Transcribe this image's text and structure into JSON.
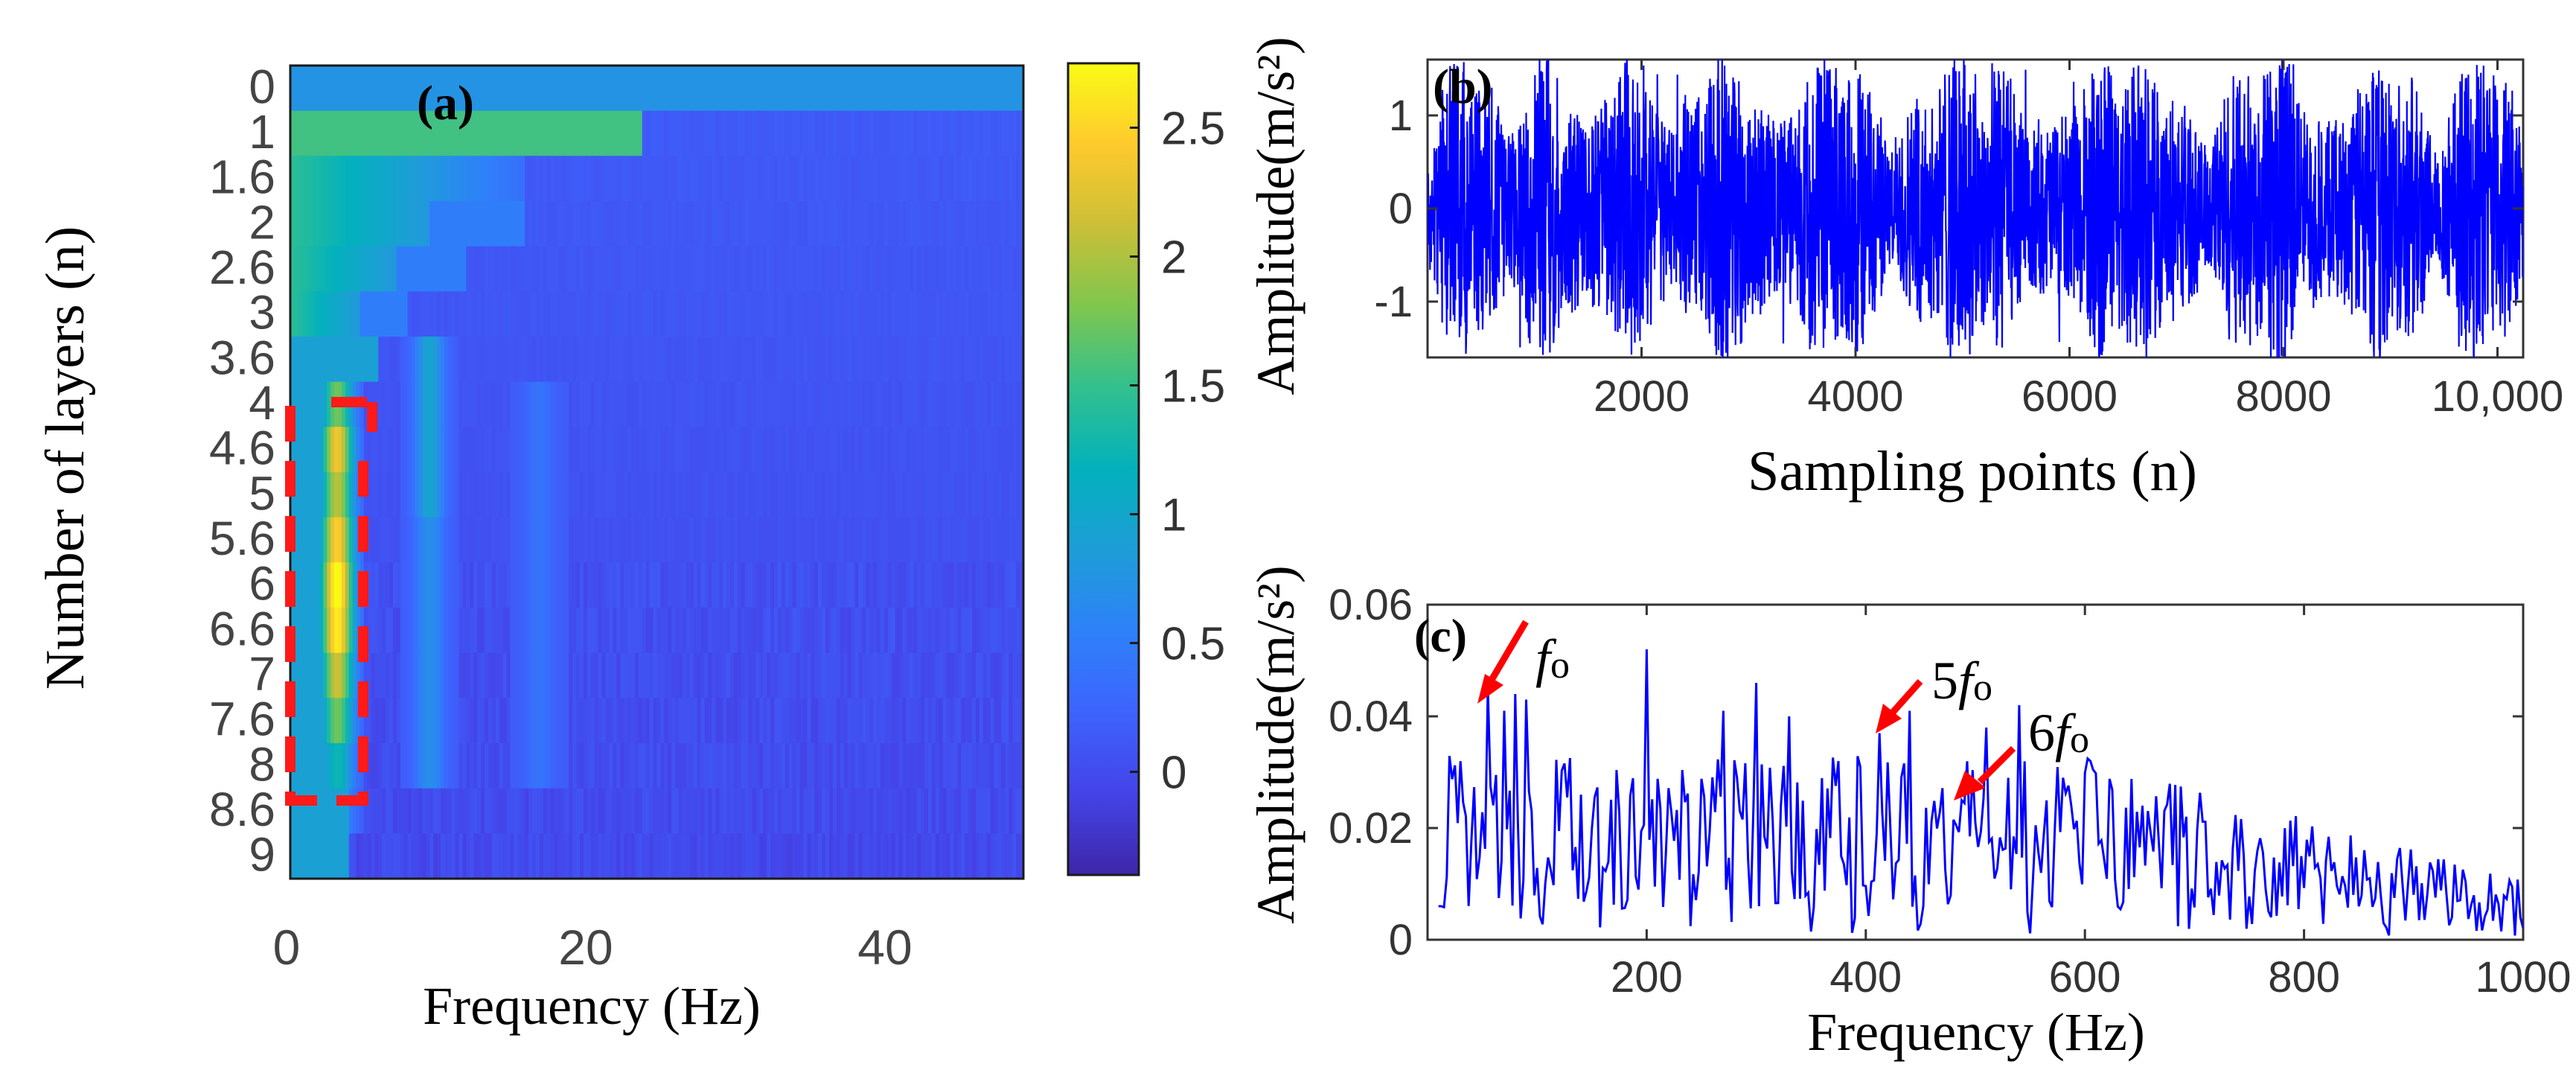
{
  "panel_a": {
    "label": "(a)",
    "ylabel": "Number of layers (n)",
    "xlabel": "Frequency (Hz)",
    "row_labels": [
      "0",
      "1",
      "1.6",
      "2",
      "2.6",
      "3",
      "3.6",
      "4",
      "4.6",
      "5",
      "5.6",
      "6",
      "6.6",
      "7",
      "7.6",
      "8",
      "8.6",
      "9"
    ],
    "x_ticks": [
      "0",
      "20",
      "40"
    ],
    "colorbar_ticks": [
      "2.5",
      "2",
      "1.5",
      "1",
      "0.5",
      "0"
    ]
  },
  "panel_b": {
    "label": "(b)",
    "ylabel": "Amplitude(m/s²)",
    "xlabel": "Sampling points (n)",
    "x_ticks": [
      "2000",
      "4000",
      "6000",
      "8000",
      "10,000"
    ],
    "y_ticks": [
      "1",
      "0",
      "-1"
    ]
  },
  "panel_c": {
    "label": "(c)",
    "ylabel": "Amplitude(m/s²)",
    "xlabel": "Frequency (Hz)",
    "x_ticks": [
      "200",
      "400",
      "600",
      "800",
      "1000"
    ],
    "y_ticks": [
      "0.06",
      "0.04",
      "0.02",
      "0"
    ],
    "annotations": [
      {
        "name": "annotation-fo",
        "italic": "f",
        "sub": "o",
        "prefix": ""
      },
      {
        "name": "annotation-5fo",
        "italic": "f",
        "sub": "o",
        "prefix": "5"
      },
      {
        "name": "annotation-6fo",
        "italic": "f",
        "sub": "o",
        "prefix": "6"
      }
    ]
  },
  "chart_data": [
    {
      "type": "heatmap",
      "title": "(a)",
      "xlabel": "Frequency (Hz)",
      "ylabel": "Number of layers (n)",
      "xlim": [
        0,
        50
      ],
      "ylim": [
        0,
        9
      ],
      "x_ticks": [
        0,
        20,
        40
      ],
      "y_ticks": [
        0,
        1,
        1.6,
        2,
        2.6,
        3,
        3.6,
        4,
        4.6,
        5,
        5.6,
        6,
        6.6,
        7,
        7.6,
        8,
        8.6,
        9
      ],
      "colorbar_range": [
        -0.4,
        2.75
      ],
      "colorbar_ticks": [
        0,
        0.5,
        1,
        1.5,
        2,
        2.5
      ],
      "colormap": "parula",
      "highlight": "red dashed box around 0–5 Hz, layers 4–8.6",
      "accent": "#ff0000"
    },
    {
      "type": "line",
      "title": "(b)",
      "xlabel": "Sampling points (n)",
      "ylabel": "Amplitude(m/s²)",
      "xlim": [
        0,
        10240
      ],
      "ylim": [
        -1.6,
        1.6
      ],
      "x_ticks": [
        2000,
        4000,
        6000,
        8000,
        10000
      ],
      "y_ticks": [
        -1,
        0,
        1
      ],
      "series_color": "#0000ff",
      "note": "Vibration signal; amplitude mostly within ±1.5 with bursts"
    },
    {
      "type": "line",
      "title": "(c)",
      "xlabel": "Frequency (Hz)",
      "ylabel": "Amplitude(m/s²)",
      "xlim": [
        0,
        1000
      ],
      "ylim": [
        0,
        0.06
      ],
      "x_ticks": [
        200,
        400,
        600,
        800,
        1000
      ],
      "y_ticks": [
        0,
        0.02,
        0.04,
        0.06
      ],
      "series_color": "#0000ff",
      "annotations": [
        {
          "text": "fo",
          "x": 55,
          "y": 0.043
        },
        {
          "text": "5fo",
          "x": 413,
          "y": 0.037
        },
        {
          "text": "6fo",
          "x": 487,
          "y": 0.025
        }
      ]
    }
  ]
}
